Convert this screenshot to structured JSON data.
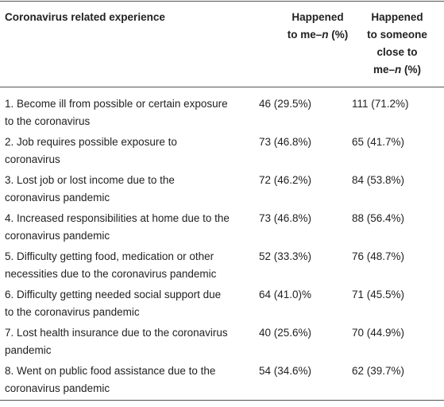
{
  "table": {
    "header": [
      [
        [
          {
            "text": "Coronavirus related experience"
          }
        ]
      ],
      [
        [
          {
            "text": "Happened"
          }
        ],
        [
          {
            "text": "to me–"
          },
          {
            "text": "n",
            "italic": true
          },
          {
            "text": " (%)"
          }
        ]
      ],
      [
        [
          {
            "text": "Happened"
          }
        ],
        [
          {
            "text": "to someone"
          }
        ],
        [
          {
            "text": "close to"
          }
        ],
        [
          {
            "text": "me–"
          },
          {
            "text": "n",
            "italic": true
          },
          {
            "text": " (%)"
          }
        ]
      ]
    ],
    "rows": [
      [
        [
          "1. Become ill from possible or certain exposure",
          "to the coronavirus"
        ],
        "46 (29.5%)",
        "111 (71.2%)"
      ],
      [
        [
          "2. Job requires possible exposure to",
          "coronavirus"
        ],
        "73 (46.8%)",
        "65 (41.7%)"
      ],
      [
        [
          "3. Lost job or lost income due to the",
          "coronavirus pandemic"
        ],
        "72 (46.2%)",
        "84 (53.8%)"
      ],
      [
        [
          "4. Increased responsibilities at home due to the",
          "coronavirus pandemic"
        ],
        "73 (46.8%)",
        "88 (56.4%)"
      ],
      [
        [
          "5. Difficulty getting food, medication or other",
          "necessities due to the coronavirus pandemic"
        ],
        "52 (33.3%)",
        "76 (48.7%)"
      ],
      [
        [
          "6. Difficulty getting needed social support due",
          "to the coronavirus pandemic"
        ],
        "64 (41.0)%",
        "71 (45.5%)"
      ],
      [
        [
          "7. Lost health insurance due to the coronavirus",
          "pandemic"
        ],
        "40 (25.6%)",
        "70 (44.9%)"
      ],
      [
        [
          "8. Went on public food assistance due to the",
          "coronavirus pandemic"
        ],
        "54 (34.6%)",
        "62 (39.7%)"
      ]
    ]
  }
}
